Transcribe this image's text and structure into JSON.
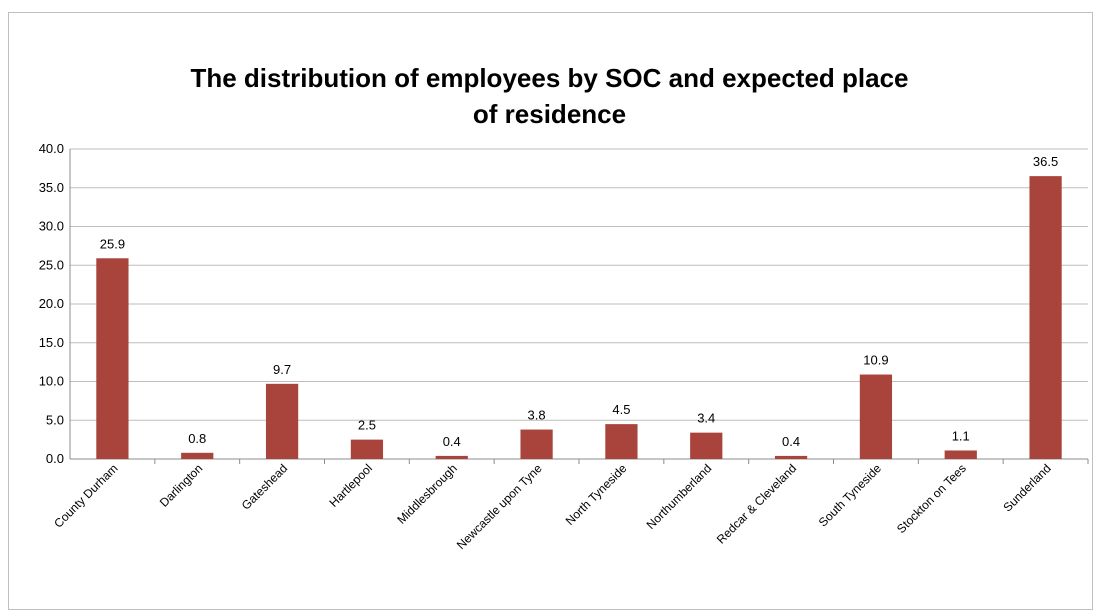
{
  "chart_data": {
    "type": "bar",
    "title_lines": [
      "The distribution of employees by SOC and expected place",
      "of residence"
    ],
    "categories": [
      "County Durham",
      "Darlington",
      "Gateshead",
      "Hartlepool",
      "Middlesbrough",
      "Newcastle upon Tyne",
      "North Tyneside",
      "Northumberland",
      "Redcar & Cleveland",
      "South Tyneside",
      "Stockton on Tees",
      "Sunderland"
    ],
    "values": [
      25.9,
      0.8,
      9.7,
      2.5,
      0.4,
      3.8,
      4.5,
      3.4,
      0.4,
      10.9,
      1.1,
      36.5
    ],
    "data_labels": [
      "25.9",
      "0.8",
      "9.7",
      "2.5",
      "0.4",
      "3.8",
      "4.5",
      "3.4",
      "0.4",
      "10.9",
      "1.1",
      "36.5"
    ],
    "y_ticks": [
      "0.0",
      "5.0",
      "10.0",
      "15.0",
      "20.0",
      "25.0",
      "30.0",
      "35.0",
      "40.0"
    ],
    "ylim": [
      0,
      40
    ],
    "grid": true,
    "legend": "none",
    "bar_color": "#a9443d"
  }
}
